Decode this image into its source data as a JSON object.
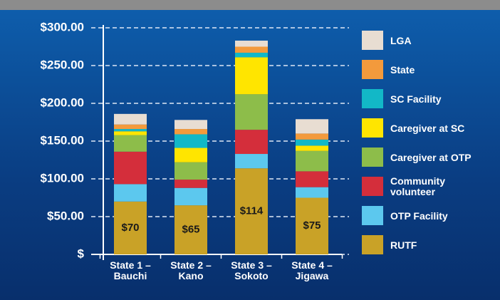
{
  "chart_data": {
    "type": "stacked-bar",
    "categories": [
      "State 1 – Bauchi",
      "State 2 – Kano",
      "State 3 – Sokoto",
      "State 4 – Jigawa"
    ],
    "series": [
      {
        "name": "RUTF",
        "color": "#c9a227",
        "values": [
          70,
          65,
          114,
          75
        ],
        "value_labels": [
          "$70",
          "$65",
          "$114",
          "$75"
        ]
      },
      {
        "name": "OTP Facility",
        "color": "#5cc8ee",
        "values": [
          23,
          23,
          19,
          14
        ]
      },
      {
        "name": "Community volunteer",
        "color": "#d42e3b",
        "values": [
          43,
          11,
          32,
          21
        ]
      },
      {
        "name": "Caregiver at OTP",
        "color": "#8dbd4a",
        "values": [
          22,
          23,
          47,
          27
        ]
      },
      {
        "name": "Caregiver at SC",
        "color": "#ffe500",
        "values": [
          5,
          19,
          49,
          7
        ]
      },
      {
        "name": "SC Facility",
        "color": "#12b8c7",
        "values": [
          3,
          18,
          6,
          8
        ]
      },
      {
        "name": "State",
        "color": "#f39a3c",
        "values": [
          6,
          7,
          8,
          8
        ]
      },
      {
        "name": "LGA",
        "color": "#e8ddd2",
        "values": [
          14,
          12,
          8,
          19
        ]
      }
    ],
    "ylim": [
      0,
      300
    ],
    "yticks": [
      {
        "value": 0,
        "label": "$"
      },
      {
        "value": 50,
        "label": "$50.00"
      },
      {
        "value": 100,
        "label": "$100.00"
      },
      {
        "value": 150,
        "label": "$150.00"
      },
      {
        "value": 200,
        "label": "$200.00"
      },
      {
        "value": 250,
        "label": "$250.00"
      },
      {
        "value": 300,
        "label": "$300.00"
      }
    ],
    "grid": true,
    "legend": "right"
  }
}
